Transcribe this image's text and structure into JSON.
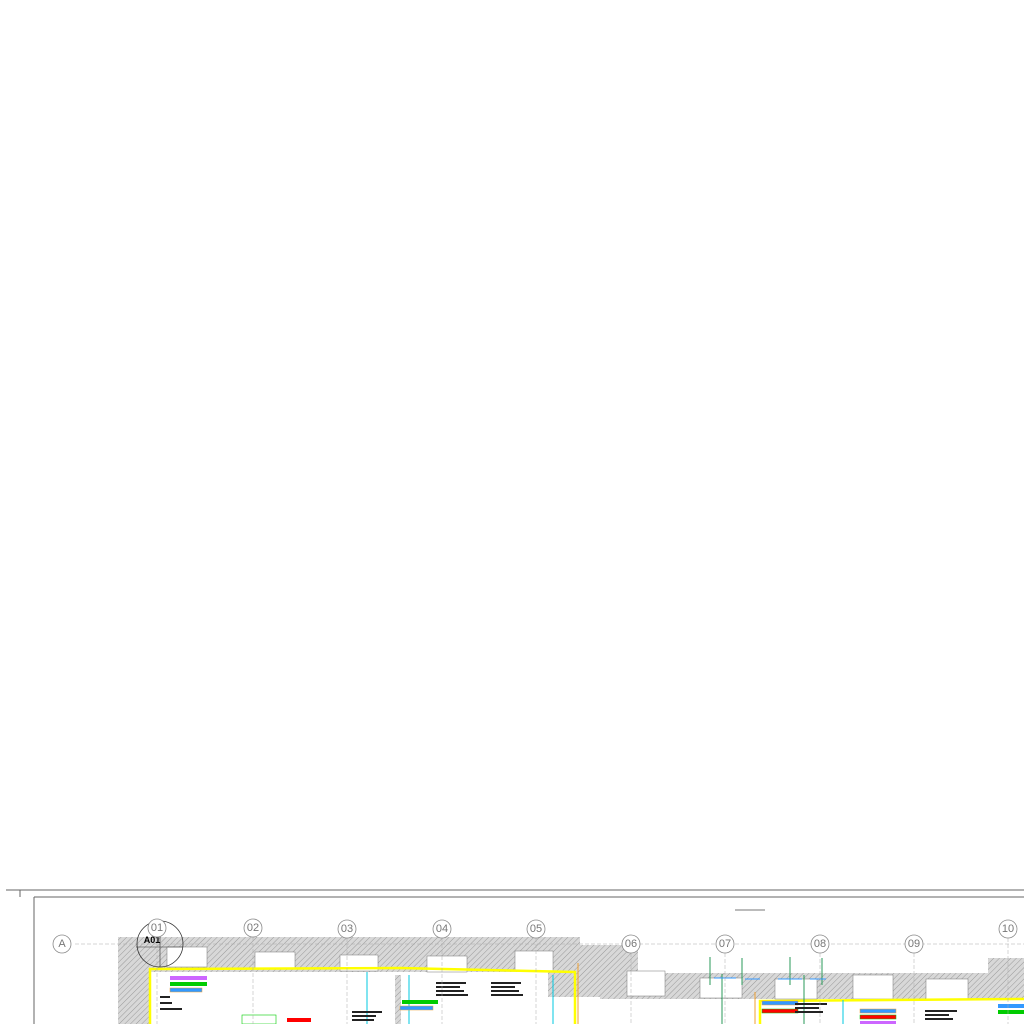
{
  "drawing": {
    "row_axis": "A",
    "detail_marker": "A01",
    "column_axes": [
      "01",
      "02",
      "03",
      "04",
      "05",
      "06",
      "07",
      "08",
      "09",
      "10"
    ],
    "colors": {
      "boundary": "#ffff00",
      "wall_hatch": "#bbbbbb",
      "pipe_cyan": "#00c8e0",
      "pipe_green": "#2a9a5a",
      "pipe_orange": "#f0a030",
      "tag_red": "#ff0000",
      "tag_green": "#00cc00",
      "tag_blue": "#3399ff",
      "tag_magenta": "#cc66ff"
    }
  }
}
